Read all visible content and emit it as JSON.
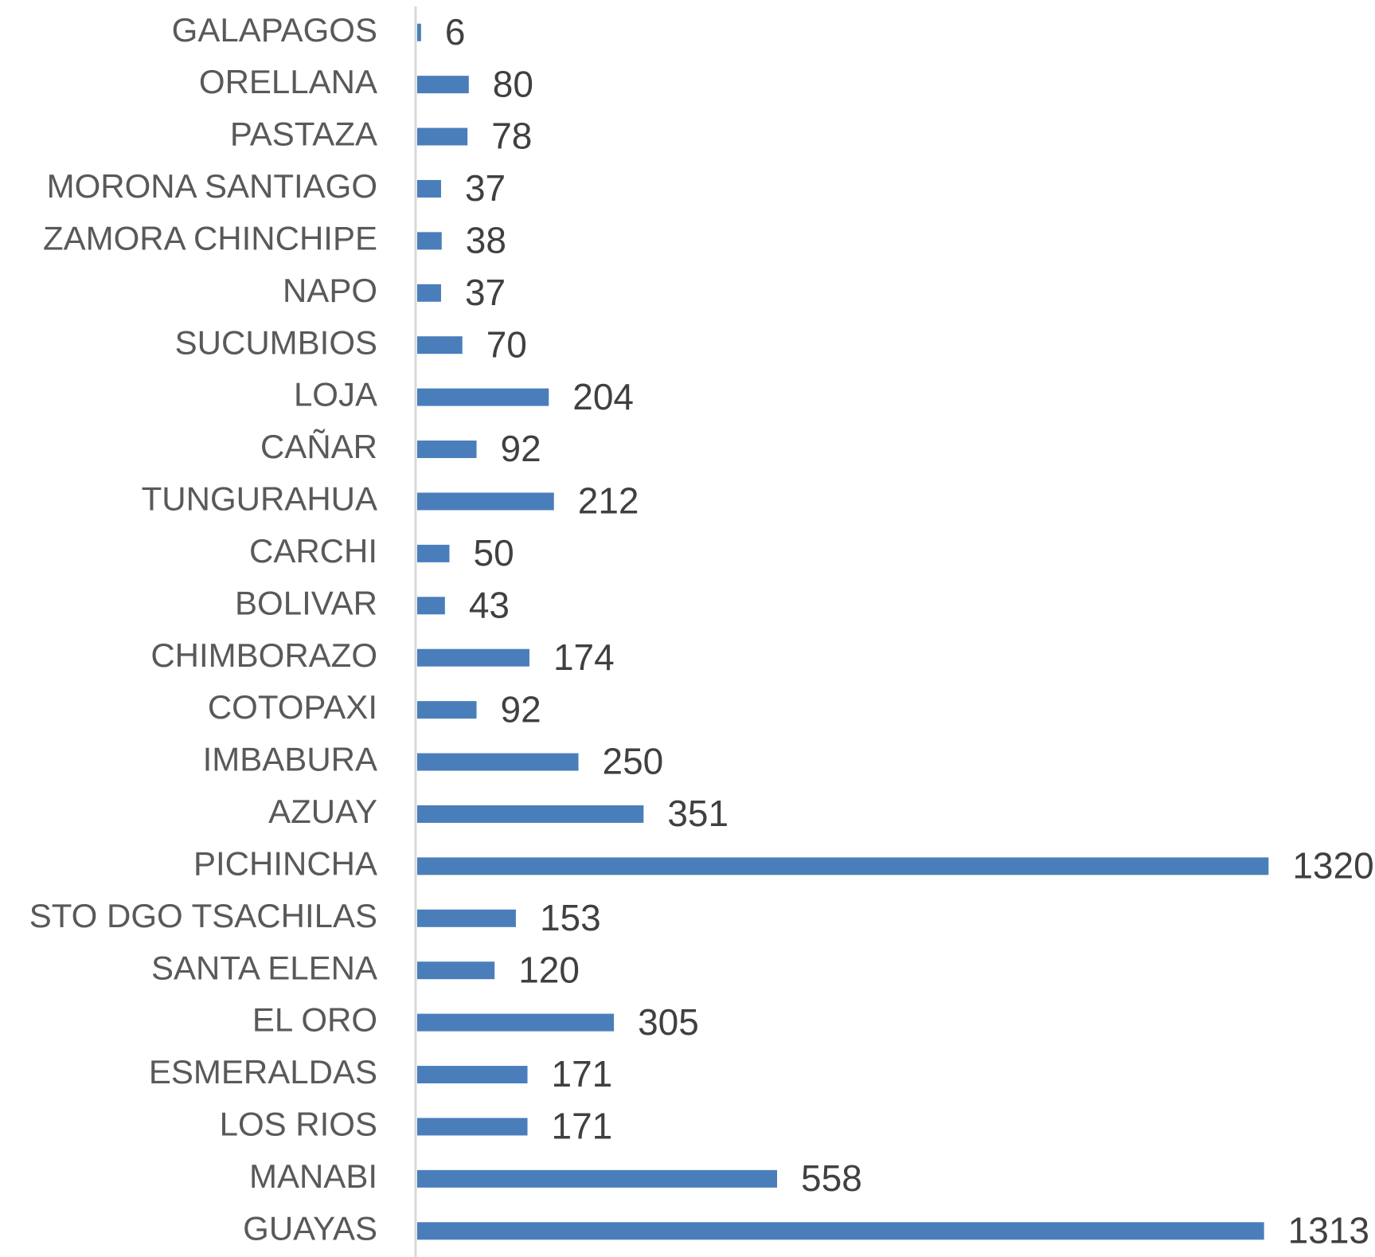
{
  "chart_data": {
    "type": "bar",
    "orientation": "horizontal",
    "categories": [
      "GALAPAGOS",
      "ORELLANA",
      "PASTAZA",
      "MORONA SANTIAGO",
      "ZAMORA CHINCHIPE",
      "NAPO",
      "SUCUMBIOS",
      "LOJA",
      "CAÑAR",
      "TUNGURAHUA",
      "CARCHI",
      "BOLIVAR",
      "CHIMBORAZO",
      "COTOPAXI",
      "IMBABURA",
      "AZUAY",
      "PICHINCHA",
      "STO DGO TSACHILAS",
      "SANTA ELENA",
      "EL ORO",
      "ESMERALDAS",
      "LOS RIOS",
      "MANABI",
      "GUAYAS"
    ],
    "values": [
      6,
      80,
      78,
      37,
      38,
      37,
      70,
      204,
      92,
      212,
      50,
      43,
      174,
      92,
      250,
      351,
      1320,
      153,
      120,
      305,
      171,
      171,
      558,
      1313
    ],
    "color": "#4a7ebb",
    "xlim": [
      0,
      1485
    ]
  }
}
